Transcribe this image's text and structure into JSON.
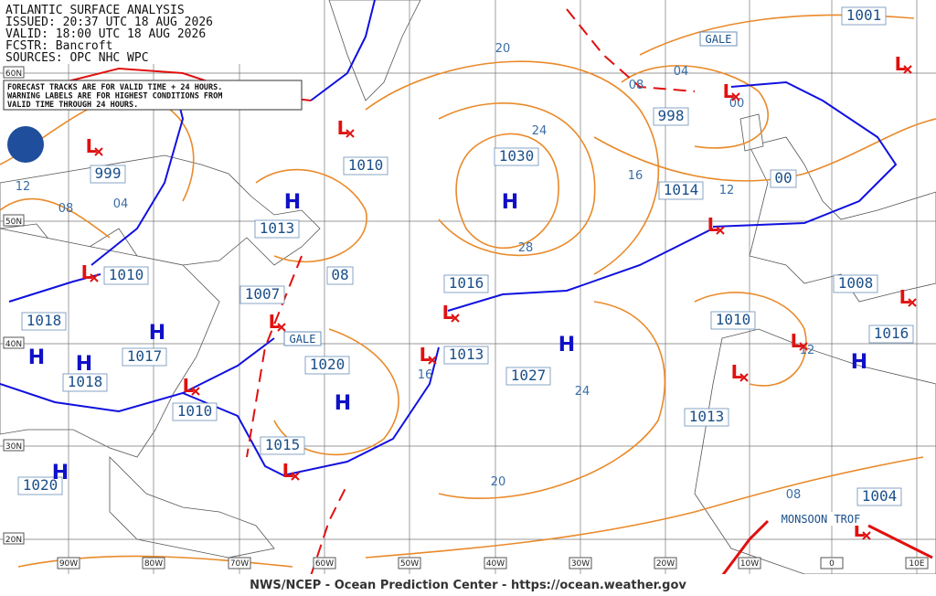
{
  "header": {
    "lines": [
      "ATLANTIC SURFACE ANALYSIS",
      "ISSUED: 20:37 UTC 18 AUG 2026",
      "VALID:  18:00 UTC 18 AUG 2026",
      "FCSTR:  Bancroft",
      "SOURCES: OPC NHC WPC"
    ]
  },
  "notice": {
    "lines": [
      "FORECAST TRACKS ARE FOR VALID TIME + 24 HOURS.",
      "WARNING LABELS ARE FOR HIGHEST CONDITIONS FROM",
      "VALID TIME THROUGH 24 HOURS."
    ]
  },
  "footer": "NWS/NCEP - Ocean Prediction Center - https://ocean.weather.gov",
  "lat_labels": [
    "60N",
    "50N",
    "40N",
    "30N",
    "20N"
  ],
  "lon_labels": [
    "90W",
    "80W",
    "70W",
    "60W",
    "50W",
    "40W",
    "30W",
    "20W",
    "10W",
    "0",
    "10E"
  ],
  "pressure_labels": [
    "999",
    "1010",
    "1013",
    "1010",
    "1007",
    "08",
    "1018",
    "1017",
    "1018",
    "1010",
    "1020",
    "1015",
    "1020",
    "1030",
    "1016",
    "1013",
    "1027",
    "1014",
    "998",
    "1001",
    "00",
    "1010",
    "1008",
    "1016",
    "1013",
    "1004"
  ],
  "isobar_labels": [
    "20",
    "24",
    "28",
    "16",
    "12",
    "04",
    "08",
    "00",
    "12",
    "08",
    "04",
    "16",
    "24",
    "20",
    "08",
    "12"
  ],
  "highs": [
    "H",
    "H",
    "H",
    "H",
    "H",
    "H",
    "H",
    "H",
    "H"
  ],
  "lows": [
    "L",
    "L",
    "L",
    "L",
    "L",
    "L",
    "L",
    "L",
    "L",
    "L",
    "L",
    "L",
    "L",
    "L",
    "L"
  ],
  "warnings": [
    "GALE",
    "GALE"
  ],
  "trough_label": "MONSOON TROF"
}
